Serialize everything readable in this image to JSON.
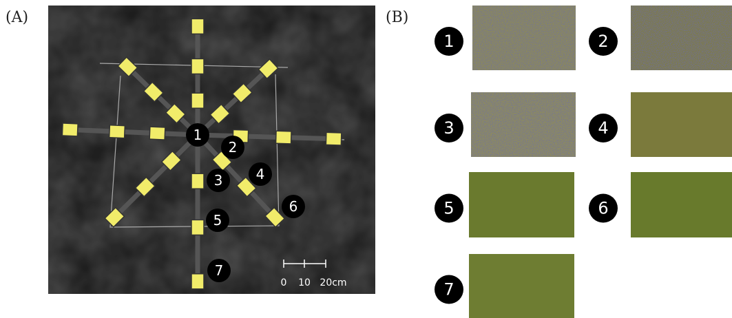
{
  "panel_a": {
    "label": "(A)",
    "markers": [
      "1",
      "2",
      "3",
      "4",
      "5",
      "6",
      "7"
    ],
    "scale_bar": [
      "0",
      "10",
      "20cm"
    ]
  },
  "panel_b": {
    "label": "(B)",
    "markers": [
      "1",
      "2",
      "3",
      "4",
      "5",
      "6",
      "7"
    ]
  }
}
